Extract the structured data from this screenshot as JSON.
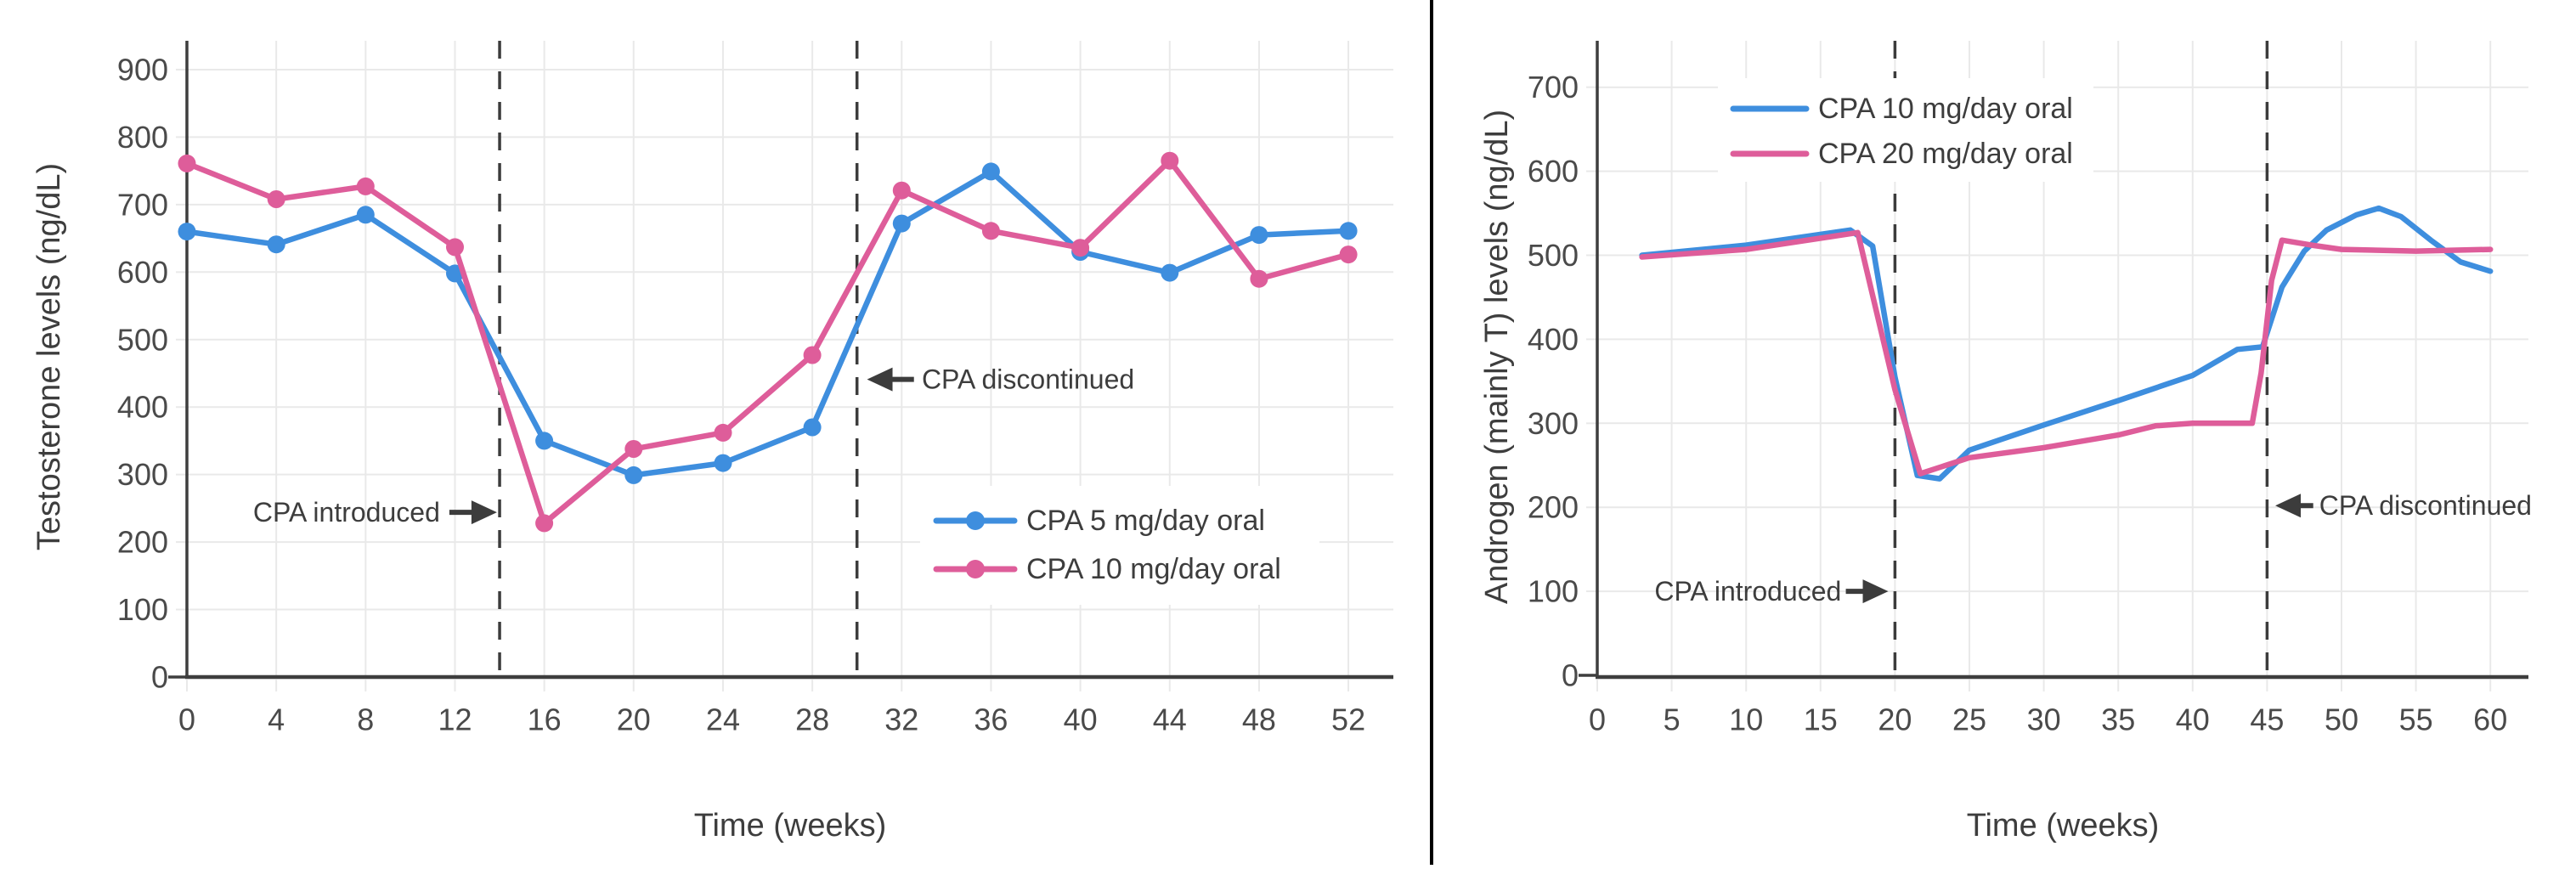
{
  "figure": {
    "background": "#ffffff",
    "divider_color": "#000000",
    "axis_color": "#3e3e3e",
    "grid_color": "#e9e9e9",
    "tick_label_color": "#4a4a4a",
    "text_color": "#3d3d3d",
    "dashed_line_color": "#3c3c3c",
    "series_blue": "#3e8ede",
    "series_pink": "#de5d9a"
  },
  "chart_data": [
    {
      "type": "line",
      "title": "",
      "xlabel": "Time (weeks)",
      "ylabel": "Testosterone levels (ng/dL)",
      "xlim": [
        0,
        54
      ],
      "ylim": [
        0,
        940
      ],
      "grid": true,
      "legend_pos": "center-right",
      "xticks": [
        0,
        4,
        8,
        12,
        16,
        20,
        24,
        28,
        32,
        36,
        40,
        44,
        48,
        52
      ],
      "yticks": [
        0,
        100,
        200,
        300,
        400,
        500,
        600,
        700,
        800,
        900
      ],
      "x": [
        0,
        4,
        8,
        12,
        16,
        20,
        24,
        28,
        32,
        36,
        40,
        44,
        48,
        52
      ],
      "series": [
        {
          "name": "CPA 5 mg/day oral",
          "color": "#3e8ede",
          "markers": true,
          "values": [
            660,
            641,
            685,
            598,
            350,
            299,
            317,
            370,
            672,
            749,
            630,
            599,
            655,
            661
          ]
        },
        {
          "name": "CPA 10 mg/day oral",
          "color": "#de5d9a",
          "markers": true,
          "values": [
            761,
            708,
            727,
            637,
            228,
            338,
            362,
            477,
            721,
            661,
            636,
            765,
            590,
            626
          ]
        }
      ],
      "vlines": [
        14,
        30
      ],
      "annotations": [
        {
          "text": "CPA introduced",
          "direction": "right",
          "text_end_x": 11.33,
          "arrow_from_x": 11.75,
          "arrow_tip_x": 13.88,
          "y": 244
        },
        {
          "text": "CPA discontinued",
          "direction": "left",
          "arrow_tip_x": 30.45,
          "arrow_from_x": 32.55,
          "text_start_x": 32.9,
          "y": 441
        }
      ]
    },
    {
      "type": "line",
      "title": "",
      "xlabel": "Time (weeks)",
      "ylabel": "Androgen (mainly T) levels (ng/dL)",
      "xlim": [
        0,
        62.5
      ],
      "ylim": [
        0,
        755
      ],
      "grid": true,
      "legend_pos": "upper-left",
      "xticks": [
        0,
        5,
        10,
        15,
        20,
        25,
        30,
        35,
        40,
        45,
        50,
        55,
        60
      ],
      "yticks": [
        0,
        100,
        200,
        300,
        400,
        500,
        600,
        700
      ],
      "series": [
        {
          "name": "CPA 10 mg/day oral",
          "color": "#3e8ede",
          "markers": false,
          "points": [
            [
              3,
              500
            ],
            [
              10,
              512
            ],
            [
              17,
              530
            ],
            [
              18.5,
              511
            ],
            [
              20,
              355
            ],
            [
              21.5,
              238
            ],
            [
              23,
              234
            ],
            [
              25,
              268
            ],
            [
              30,
              298
            ],
            [
              35,
              327
            ],
            [
              40,
              357
            ],
            [
              43,
              388
            ],
            [
              44.7,
              391
            ],
            [
              46,
              462
            ],
            [
              47.5,
              505
            ],
            [
              49,
              530
            ],
            [
              51,
              548
            ],
            [
              52.5,
              556
            ],
            [
              54,
              546
            ],
            [
              56,
              518
            ],
            [
              58,
              492
            ],
            [
              60,
              481
            ]
          ]
        },
        {
          "name": "CPA 20 mg/day oral",
          "color": "#de5d9a",
          "markers": false,
          "points": [
            [
              3,
              498
            ],
            [
              10,
              507
            ],
            [
              17.5,
              527
            ],
            [
              20,
              340
            ],
            [
              21.7,
              240
            ],
            [
              25,
              259
            ],
            [
              30,
              271
            ],
            [
              35,
              286
            ],
            [
              37.5,
              297
            ],
            [
              40,
              300
            ],
            [
              44,
              300
            ],
            [
              44.6,
              360
            ],
            [
              45.3,
              470
            ],
            [
              46,
              518
            ],
            [
              48,
              512
            ],
            [
              50,
              507
            ],
            [
              55,
              505
            ],
            [
              60,
              507
            ]
          ]
        }
      ],
      "vlines": [
        20,
        45
      ],
      "annotations": [
        {
          "text": "CPA introduced",
          "direction": "right",
          "text_end_x": 16.4,
          "arrow_from_x": 16.7,
          "arrow_tip_x": 19.55,
          "y": 100
        },
        {
          "text": "CPA discontinued",
          "direction": "left",
          "arrow_tip_x": 45.55,
          "arrow_from_x": 48.1,
          "text_start_x": 48.5,
          "y": 202
        }
      ]
    }
  ]
}
